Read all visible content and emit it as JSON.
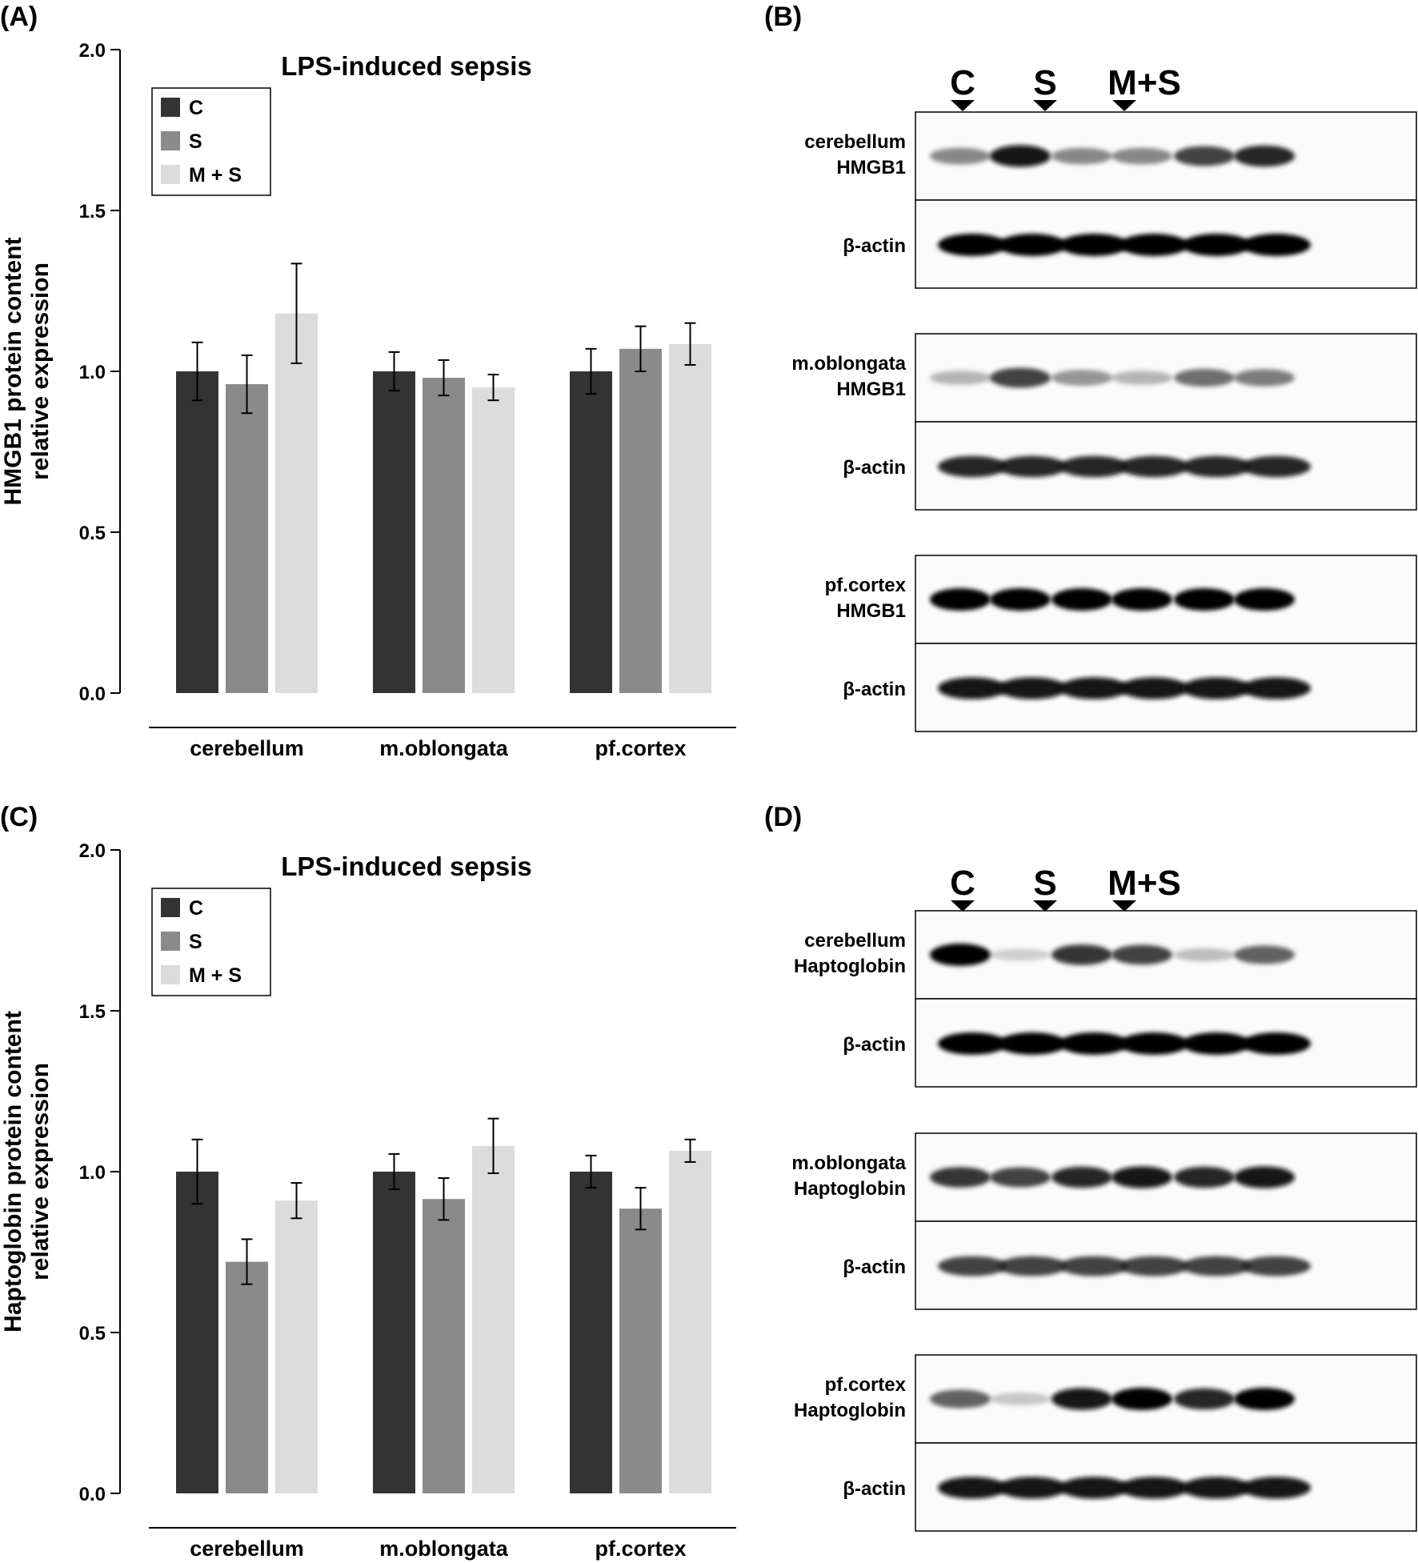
{
  "panels": [
    {
      "letter": "(A)",
      "chart_data": {
        "type": "bar",
        "title": "LPS-induced sepsis",
        "ylabel": [
          "HMGB1 protein content",
          "relative expression"
        ],
        "xlabel": "",
        "ylim": [
          0,
          2.0
        ],
        "yticks": [
          "0.0",
          "0.5",
          "1.0",
          "1.5",
          "2.0"
        ],
        "categories": [
          "cerebellum",
          "m.oblongata",
          "pf.cortex"
        ],
        "legend_position": "top-left",
        "grid": false,
        "series": [
          {
            "name": "C",
            "color": "#333333",
            "values": [
              1.0,
              1.0,
              1.0
            ],
            "errors": [
              0.09,
              0.06,
              0.07
            ]
          },
          {
            "name": "S",
            "color": "#8a8a8a",
            "values": [
              0.96,
              0.98,
              1.07
            ],
            "errors": [
              0.09,
              0.055,
              0.07
            ]
          },
          {
            "name": "M + S",
            "color": "#dcdcdc",
            "values": [
              1.18,
              0.95,
              1.085
            ],
            "errors": [
              0.155,
              0.04,
              0.065
            ]
          }
        ]
      }
    },
    {
      "letter": "(C)",
      "chart_data": {
        "type": "bar",
        "title": "LPS-induced sepsis",
        "ylabel": [
          "Haptoglobin protein content",
          "relative expression"
        ],
        "xlabel": "",
        "ylim": [
          0,
          2.0
        ],
        "yticks": [
          "0.0",
          "0.5",
          "1.0",
          "1.5",
          "2.0"
        ],
        "categories": [
          "cerebellum",
          "m.oblongata",
          "pf.cortex"
        ],
        "legend_position": "top-left",
        "grid": false,
        "series": [
          {
            "name": "C",
            "color": "#333333",
            "values": [
              1.0,
              1.0,
              1.0
            ],
            "errors": [
              0.1,
              0.055,
              0.05
            ]
          },
          {
            "name": "S",
            "color": "#8a8a8a",
            "values": [
              0.72,
              0.915,
              0.885
            ],
            "errors": [
              0.07,
              0.065,
              0.065
            ]
          },
          {
            "name": "M + S",
            "color": "#dcdcdc",
            "values": [
              0.91,
              1.08,
              1.065
            ],
            "errors": [
              0.055,
              0.085,
              0.035
            ]
          }
        ]
      }
    }
  ],
  "blots": [
    {
      "letter": "(B)",
      "lane_labels": [
        "C",
        "S",
        "M+S"
      ],
      "groups": [
        {
          "target": [
            "cerebellum",
            "HMGB1"
          ],
          "control": "β-actin",
          "target_intensity": [
            0.55,
            0.95,
            0.55,
            0.55,
            0.8,
            0.9
          ],
          "control_intensity": [
            1,
            1,
            1,
            1,
            1,
            1
          ]
        },
        {
          "target": [
            "m.oblongata",
            "HMGB1"
          ],
          "control": "β-actin",
          "target_intensity": [
            0.35,
            0.8,
            0.5,
            0.35,
            0.65,
            0.6
          ],
          "control_intensity": [
            0.9,
            0.9,
            0.9,
            0.9,
            0.9,
            0.9
          ]
        },
        {
          "target": [
            "pf.cortex",
            "HMGB1"
          ],
          "control": "β-actin",
          "target_intensity": [
            1,
            1,
            1,
            1,
            1,
            1
          ],
          "control_intensity": [
            0.95,
            0.95,
            0.95,
            0.95,
            0.95,
            0.95
          ]
        }
      ]
    },
    {
      "letter": "(D)",
      "lane_labels": [
        "C",
        "S",
        "M+S"
      ],
      "groups": [
        {
          "target": [
            "cerebellum",
            "Haptoglobin"
          ],
          "control": "β-actin",
          "target_intensity": [
            1,
            0.2,
            0.85,
            0.8,
            0.3,
            0.7
          ],
          "control_intensity": [
            1,
            1,
            1,
            1,
            1,
            1
          ]
        },
        {
          "target": [
            "m.oblongata",
            "Haptoglobin"
          ],
          "control": "β-actin",
          "target_intensity": [
            0.85,
            0.8,
            0.9,
            0.95,
            0.9,
            0.95
          ],
          "control_intensity": [
            0.8,
            0.8,
            0.8,
            0.8,
            0.8,
            0.8
          ]
        },
        {
          "target": [
            "pf.cortex",
            "Haptoglobin"
          ],
          "control": "β-actin",
          "target_intensity": [
            0.7,
            0.25,
            0.95,
            1,
            0.9,
            1
          ],
          "control_intensity": [
            0.95,
            0.95,
            0.95,
            0.95,
            0.95,
            0.95
          ]
        }
      ]
    }
  ]
}
